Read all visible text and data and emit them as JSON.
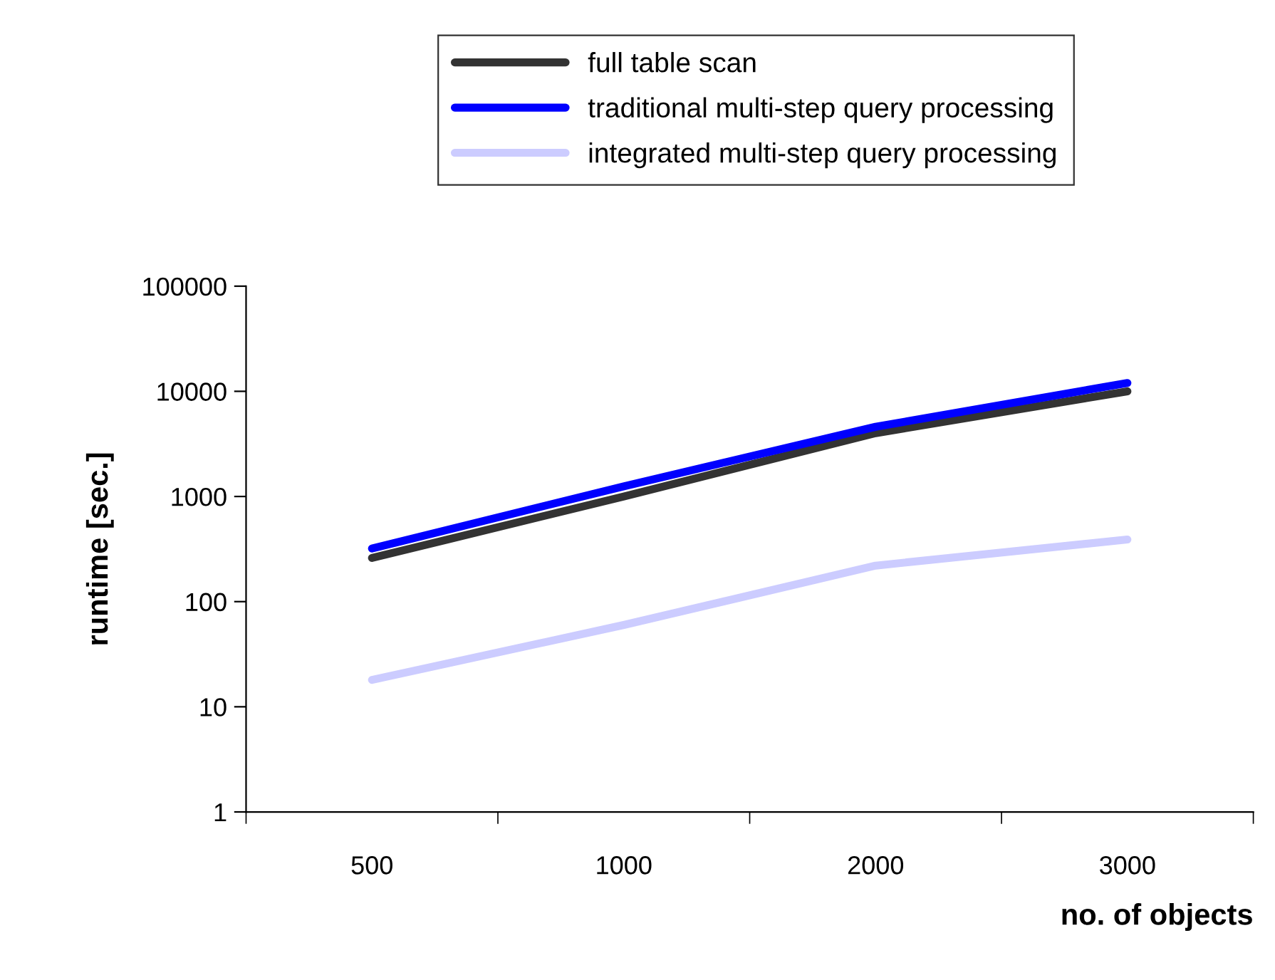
{
  "chart_data": {
    "type": "line",
    "xlabel": "no. of objects",
    "ylabel": "runtime [sec.]",
    "categories": [
      "500",
      "1000",
      "2000",
      "3000"
    ],
    "series": [
      {
        "name": "full table scan",
        "color": "#333333",
        "values": [
          260,
          1000,
          4000,
          10000
        ]
      },
      {
        "name": "traditional multi-step query processing",
        "color": "#0000ff",
        "values": [
          320,
          1250,
          4600,
          12000
        ]
      },
      {
        "name": "integrated multi-step query processing",
        "color": "#ccccff",
        "values": [
          18,
          60,
          220,
          390
        ]
      }
    ],
    "log": "y",
    "ylim": [
      1,
      100000
    ],
    "yticks": [
      1,
      10,
      100,
      1000,
      10000,
      100000
    ],
    "legend": "top",
    "marker": "none",
    "line_style": "solid",
    "grid": false
  }
}
